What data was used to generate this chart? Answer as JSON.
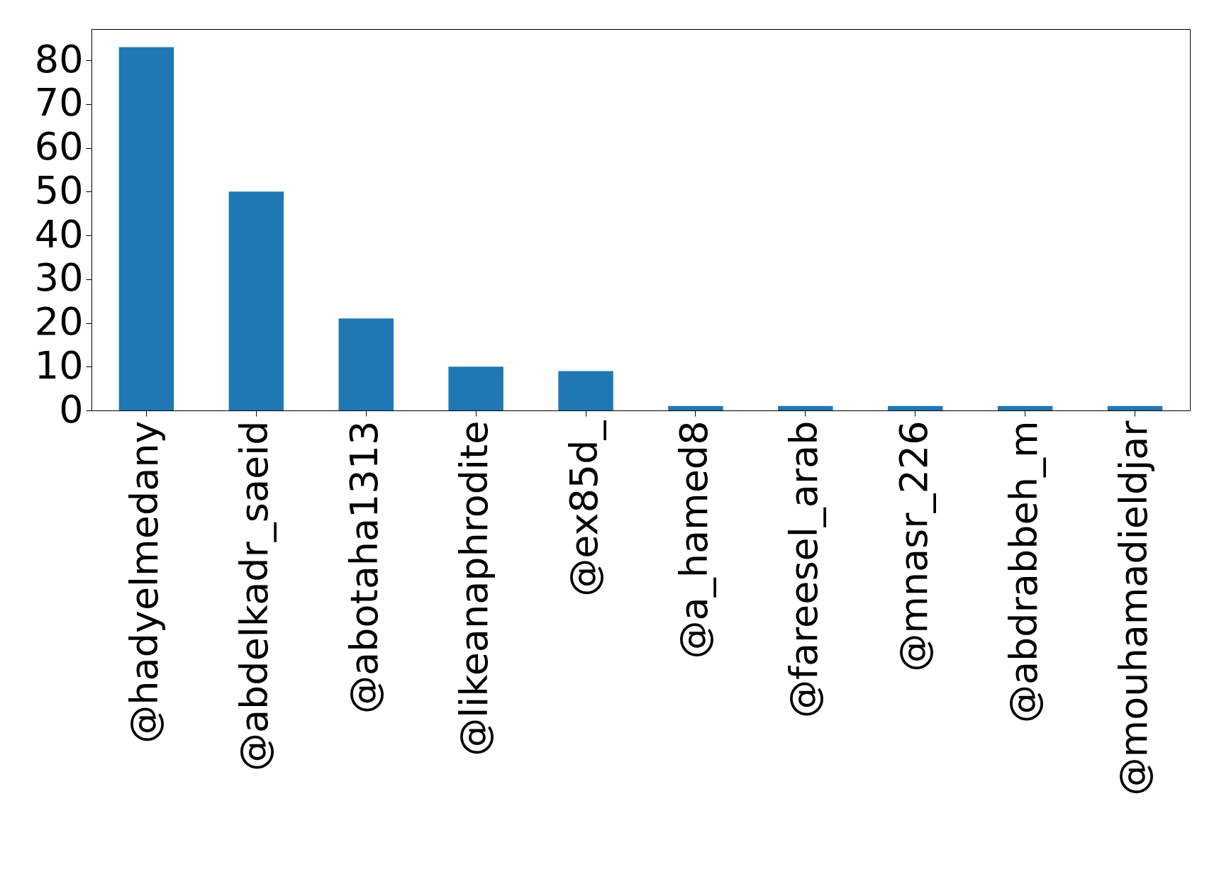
{
  "chart_data": {
    "type": "bar",
    "categories": [
      "@hadyelmedany",
      "@abdelkadr_saeid",
      "@abotaha1313",
      "@likeanaphrodite",
      "@ex85d_",
      "@a_hamed8",
      "@fareesel_arab",
      "@mnasr_226",
      "@abdrabbeh_m",
      "@mouhamadieldjar"
    ],
    "values": [
      83,
      50,
      21,
      10,
      9,
      1,
      1,
      1,
      1,
      1
    ],
    "color": "#1f77b4",
    "ylim": [
      0,
      87.15
    ],
    "yticks": [
      0,
      10,
      20,
      30,
      40,
      50,
      60,
      70,
      80
    ],
    "grid": false
  }
}
